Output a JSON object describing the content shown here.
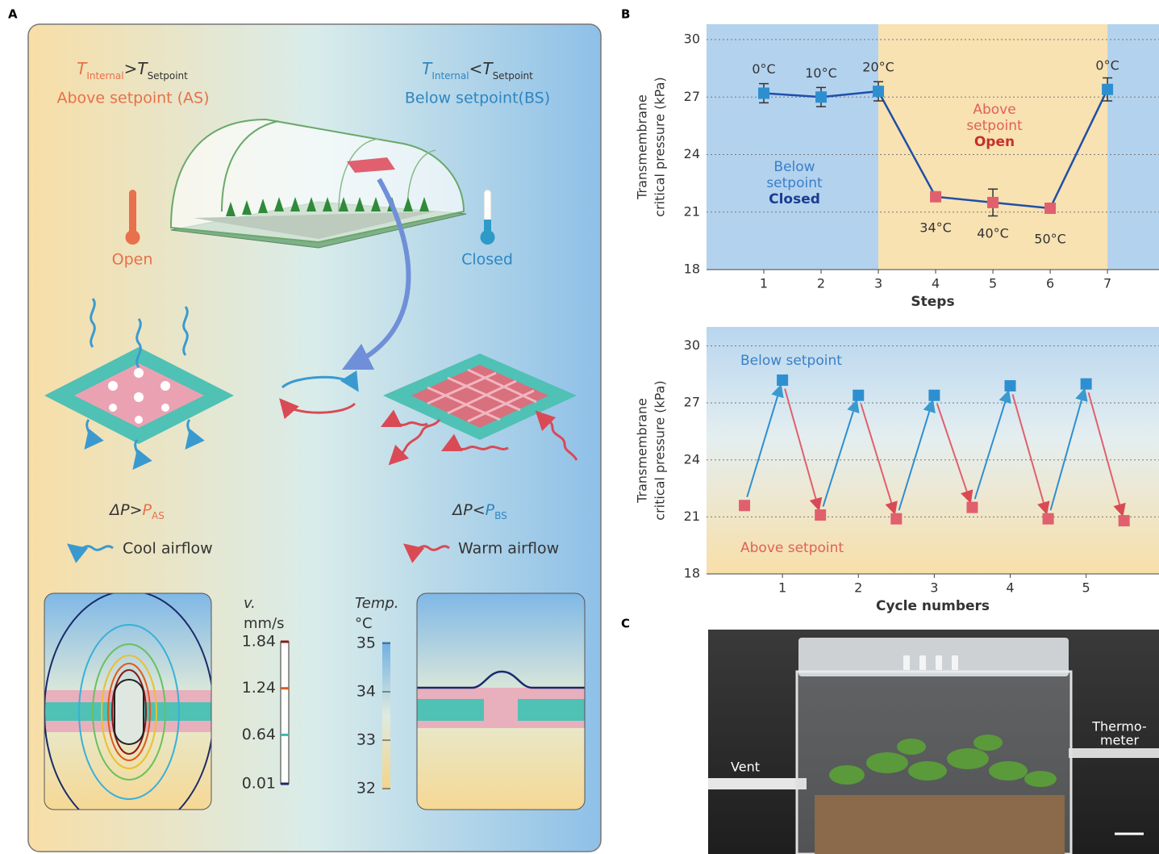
{
  "panel_labels": [
    "A",
    "B",
    "C"
  ],
  "diagram": {
    "as_condition": [
      "T",
      "Internal",
      ">",
      "T",
      "Setpoint"
    ],
    "as_label": "Above setpoint (AS)",
    "bs_condition": [
      "T",
      "Internal",
      "<",
      "T",
      "Setpoint"
    ],
    "bs_label": "Below setpoint(BS)",
    "open_label": "Open",
    "closed_label": "Closed",
    "as_pressure": [
      "ΔP>",
      "P",
      "AS"
    ],
    "bs_pressure": [
      "ΔP<",
      "P",
      "BS"
    ],
    "cool_airflow": "Cool airflow",
    "warm_airflow": "Warm airflow",
    "velocity_scale": {
      "title": [
        "v.",
        "mm/s"
      ],
      "lim": [
        0.01,
        1.84
      ],
      "ticks": [
        1.84,
        1.24,
        0.64,
        0.01
      ],
      "tick_colors": [
        "#8b1a1a",
        "#e05a1a",
        "#3cb8b0",
        "#1a2a6a"
      ]
    },
    "temperature_scale": {
      "title": [
        "Temp.",
        "°C"
      ],
      "lim": [
        32,
        35
      ],
      "ticks": [
        35,
        34,
        33,
        32
      ]
    }
  },
  "chart_data": [
    {
      "type": "line",
      "x": [
        1,
        2,
        3,
        4,
        5,
        6,
        7
      ],
      "values": [
        27.2,
        27.0,
        27.3,
        21.8,
        21.5,
        21.2,
        27.4
      ],
      "errors": [
        0.5,
        0.5,
        0.5,
        0.2,
        0.7,
        0.2,
        0.6
      ],
      "point_labels": [
        "0°C",
        "10°C",
        "20°C",
        "34°C",
        "40°C",
        "50°C",
        "0°C"
      ],
      "point_colors": [
        "#2e8fd0",
        "#2e8fd0",
        "#2e8fd0",
        "#e0606e",
        "#e0606e",
        "#e0606e",
        "#2e8fd0"
      ],
      "color": "#1f4fa8",
      "xlabel": "Steps",
      "ylabel": [
        "Transmembrane",
        "critical pressure (kPa)"
      ],
      "xlim": [
        0,
        7.9
      ],
      "ylim": [
        18,
        30.8
      ],
      "xticks": [
        1,
        2,
        3,
        4,
        5,
        6,
        7
      ],
      "yticks": [
        18,
        21,
        24,
        27,
        30
      ],
      "grid": true,
      "regions": [
        {
          "from": 0,
          "to": 3,
          "color": "#b3d2ee"
        },
        {
          "from": 3,
          "to": 7,
          "color": "#f8e2b2"
        },
        {
          "from": 7,
          "to": 7.9,
          "color": "#b3d2ee"
        }
      ],
      "annotations": [
        [
          "Below",
          "setpoint",
          "Closed"
        ],
        [
          "Above",
          "setpoint",
          "Open"
        ]
      ]
    },
    {
      "type": "scatter",
      "series": [
        {
          "name": "Below setpoint",
          "color": "#2e8fd0",
          "x": [
            1,
            2,
            3,
            4,
            5
          ],
          "values": [
            28.2,
            27.4,
            27.4,
            27.9,
            28.0
          ]
        },
        {
          "name": "Above setpoint",
          "color": "#e0606e",
          "x": [
            0.5,
            1.5,
            2.5,
            3.5,
            4.5,
            5.5
          ],
          "values": [
            21.6,
            21.1,
            20.9,
            21.5,
            20.9,
            20.8
          ]
        }
      ],
      "xlabel": "Cycle numbers",
      "ylabel": [
        "Transmembrane",
        "critical pressure (kPa)"
      ],
      "xlim": [
        0,
        5.96
      ],
      "ylim": [
        18,
        31
      ],
      "xticks": [
        1,
        2,
        3,
        4,
        5
      ],
      "yticks": [
        18,
        21,
        24,
        27,
        30
      ],
      "grid": true
    }
  ],
  "photo": {
    "vent_label": "Vent",
    "thermometer_label": [
      "Thermo-",
      "meter"
    ]
  }
}
